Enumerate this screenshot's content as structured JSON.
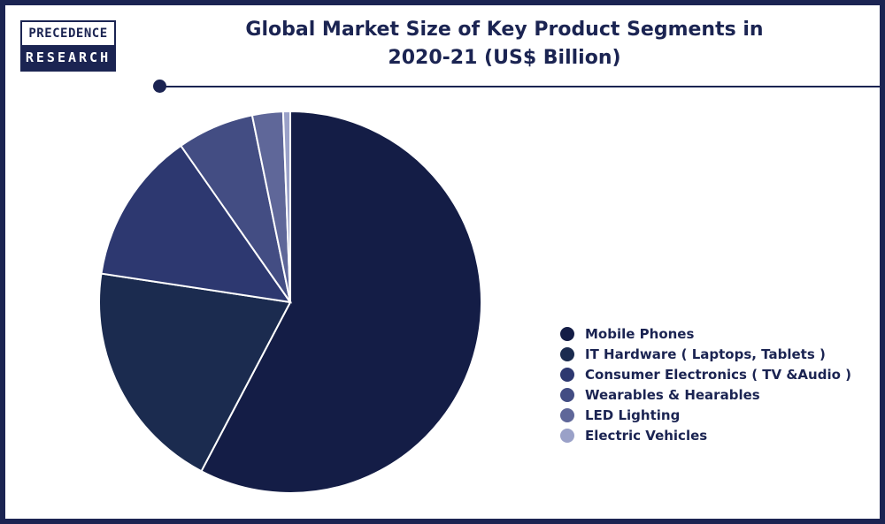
{
  "logo": {
    "line1": "PRECEDENCE",
    "line2": "RESEARCH"
  },
  "title_line1": "Global Market Size of Key Product Segments in",
  "title_line2": "2020-21 (US$ Billion)",
  "chart_data": {
    "type": "pie",
    "title": "Global Market Size of Key Product Segments in 2020-21 (US$ Billion)",
    "legend_position": "right",
    "categories": [
      "Mobile Phones",
      "IT Hardware ( Laptops, Tablets )",
      "Consumer Electronics ( TV &Audio )",
      "Wearables & Hearables",
      "LED Lighting",
      "Electric Vehicles"
    ],
    "values": [
      57.7,
      19.7,
      12.9,
      6.5,
      2.6,
      0.6
    ],
    "colors": [
      "#141d46",
      "#1b2b4f",
      "#2d3870",
      "#434d83",
      "#5f6799",
      "#9aa1c8"
    ],
    "slice_border": "#ffffff"
  }
}
